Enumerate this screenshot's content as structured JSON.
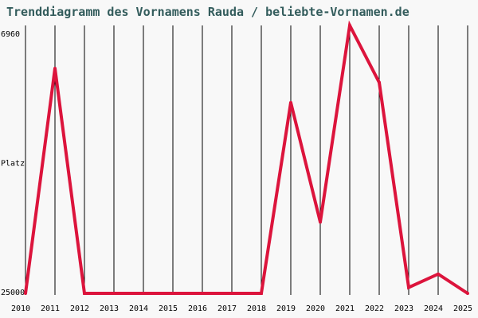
{
  "title": "Trenddiagramm des Vornamens Rauda / beliebte-Vornamen.de",
  "colors": {
    "background": "#f8f8f8",
    "title": "#335c5c",
    "gridline": "#000000",
    "line": "#dc143c"
  },
  "chart_data": {
    "type": "line",
    "title": "Trenddiagramm des Vornamens Rauda / beliebte-Vornamen.de",
    "xlabel": "",
    "ylabel": "Platz",
    "y_inverted": true,
    "ylim": [
      25000,
      6960
    ],
    "y_tick_labels": [
      "6960",
      "25000"
    ],
    "grid": "vertical",
    "categories": [
      "2010",
      "2011",
      "2012",
      "2013",
      "2014",
      "2015",
      "2016",
      "2017",
      "2018",
      "2019",
      "2020",
      "2021",
      "2022",
      "2023",
      "2024",
      "2025"
    ],
    "series": [
      {
        "values": [
          25000,
          9850,
          25000,
          25000,
          25000,
          25000,
          25000,
          25000,
          25000,
          12150,
          20200,
          6960,
          10800,
          24600,
          23700,
          25000
        ]
      }
    ]
  }
}
